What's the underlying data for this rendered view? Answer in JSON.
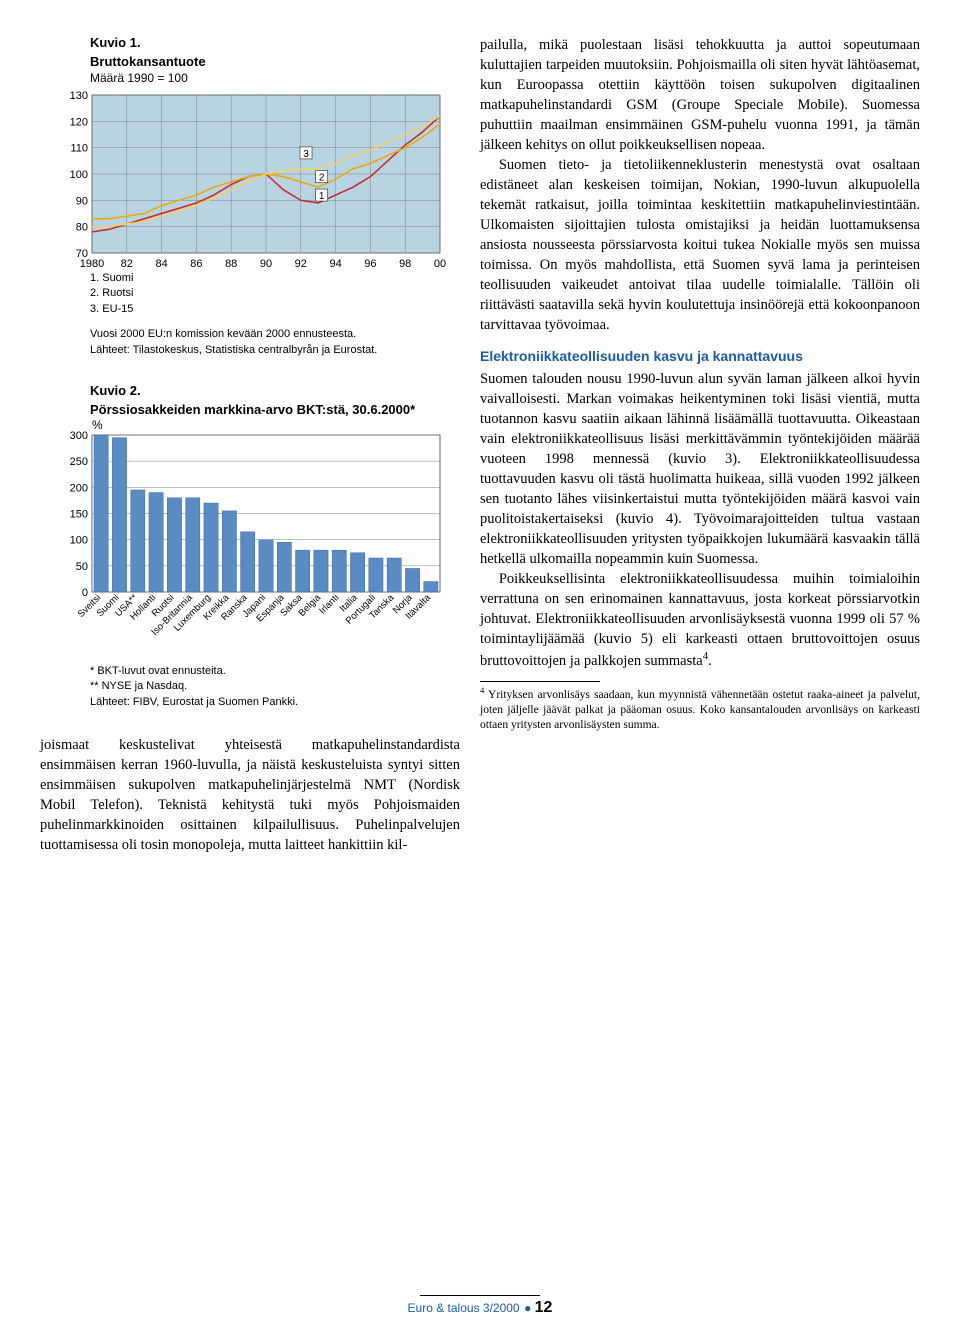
{
  "chart1": {
    "label": "Kuvio 1.",
    "title": "Bruttokansantuote",
    "subtitle": "Määrä 1990 = 100",
    "type": "line",
    "plot_bg": "#b8d4e3",
    "grid_color": "#808080",
    "ylim": [
      70,
      130
    ],
    "ytick_step": 10,
    "yticks": [
      "70",
      "80",
      "90",
      "100",
      "110",
      "120",
      "130"
    ],
    "xlim": [
      1980,
      2000
    ],
    "xtick_step": 2,
    "xticks": [
      "1980",
      "82",
      "84",
      "86",
      "88",
      "90",
      "92",
      "94",
      "96",
      "98",
      "00"
    ],
    "series": [
      {
        "name": "Suomi",
        "color": "#c9252b",
        "marker_label": "1",
        "width": 1.5,
        "points": [
          [
            1980,
            78
          ],
          [
            1981,
            79
          ],
          [
            1982,
            81
          ],
          [
            1983,
            83
          ],
          [
            1984,
            85
          ],
          [
            1985,
            87
          ],
          [
            1986,
            89
          ],
          [
            1987,
            92
          ],
          [
            1988,
            96
          ],
          [
            1989,
            99
          ],
          [
            1990,
            100
          ],
          [
            1991,
            94
          ],
          [
            1992,
            90
          ],
          [
            1993,
            89
          ],
          [
            1994,
            92
          ],
          [
            1995,
            95
          ],
          [
            1996,
            99
          ],
          [
            1997,
            105
          ],
          [
            1998,
            111
          ],
          [
            1999,
            116
          ],
          [
            2000,
            122
          ]
        ]
      },
      {
        "name": "Ruotsi",
        "color": "#f0a800",
        "marker_label": "2",
        "width": 1.5,
        "points": [
          [
            1980,
            83
          ],
          [
            1981,
            83
          ],
          [
            1982,
            84
          ],
          [
            1983,
            85
          ],
          [
            1984,
            88
          ],
          [
            1985,
            90
          ],
          [
            1986,
            92
          ],
          [
            1987,
            95
          ],
          [
            1988,
            97
          ],
          [
            1989,
            99
          ],
          [
            1990,
            100
          ],
          [
            1991,
            99
          ],
          [
            1992,
            97
          ],
          [
            1993,
            95
          ],
          [
            1994,
            98
          ],
          [
            1995,
            102
          ],
          [
            1996,
            104
          ],
          [
            1997,
            107
          ],
          [
            1998,
            110
          ],
          [
            1999,
            114
          ],
          [
            2000,
            119
          ]
        ]
      },
      {
        "name": "EU-15",
        "color": "#f5d060",
        "marker_label": "3",
        "width": 1.5,
        "points": [
          [
            1980,
            80
          ],
          [
            1981,
            80
          ],
          [
            1982,
            81
          ],
          [
            1983,
            82
          ],
          [
            1984,
            84
          ],
          [
            1985,
            86
          ],
          [
            1986,
            88
          ],
          [
            1987,
            91
          ],
          [
            1988,
            94
          ],
          [
            1989,
            97
          ],
          [
            1990,
            100
          ],
          [
            1991,
            101
          ],
          [
            1992,
            102
          ],
          [
            1993,
            102
          ],
          [
            1994,
            104
          ],
          [
            1995,
            107
          ],
          [
            1996,
            109
          ],
          [
            1997,
            112
          ],
          [
            1998,
            115
          ],
          [
            1999,
            118
          ],
          [
            2000,
            122
          ]
        ]
      }
    ],
    "legend": [
      "1. Suomi",
      "2. Ruotsi",
      "3. EU-15"
    ],
    "notes": [
      "Vuosi 2000 EU:n komission kevään 2000 ennusteesta.",
      "Lähteet: Tilastokeskus, Statistiska centralbyrån ja Eurostat."
    ]
  },
  "chart2": {
    "label": "Kuvio 2.",
    "title": "Pörssiosakkeiden markkina-arvo BKT:stä, 30.6.2000*",
    "unit": "%",
    "type": "bar",
    "plot_bg": "#ffffff",
    "grid_color": "#808080",
    "bar_color": "#5a8bc4",
    "ylim": [
      0,
      300
    ],
    "ytick_step": 50,
    "yticks": [
      "0",
      "50",
      "100",
      "150",
      "200",
      "250",
      "300"
    ],
    "categories": [
      "Sveitsi",
      "Suomi",
      "USA**",
      "Hollanti",
      "Ruotsi",
      "Iso-Britannia",
      "Luxemburg",
      "Kreikka",
      "Ranska",
      "Japani",
      "Espanja",
      "Saksa",
      "Belgia",
      "Irlanti",
      "Italia",
      "Portugali",
      "Tanska",
      "Norja",
      "Itävalta"
    ],
    "values": [
      305,
      295,
      195,
      190,
      180,
      180,
      170,
      155,
      115,
      100,
      95,
      80,
      80,
      80,
      75,
      65,
      65,
      45,
      20
    ],
    "notes": [
      "*  BKT-luvut ovat ennusteita.",
      "** NYSE ja Nasdaq.",
      "Lähteet: FIBV, Eurostat ja Suomen Pankki."
    ]
  },
  "left_body": {
    "p1": "joismaat keskustelivat yhteisestä matkapuhelinstandardista ensimmäisen kerran 1960-luvulla, ja näistä keskusteluista syntyi sitten ensimmäisen sukupolven matkapuhelinjärjestelmä NMT (Nordisk Mobil Telefon). Teknistä kehitystä tuki myös Pohjoismaiden puhelinmarkkinoiden osittainen kilpailullisuus. Puhelinpalvelujen tuottamisessa oli tosin monopoleja, mutta laitteet hankittiin kil-"
  },
  "right_body": {
    "p1": "pailulla, mikä puolestaan lisäsi tehokkuutta ja auttoi sopeutumaan kuluttajien tarpeiden muutoksiin. Pohjoismailla oli siten hyvät lähtöasemat, kun Euroopassa otettiin käyttöön toisen sukupolven digitaalinen matkapuhelinstandardi GSM (Groupe Speciale Mobile). Suomessa puhuttiin maailman ensimmäinen GSM-puhelu vuonna 1991, ja tämän jälkeen kehitys on ollut poikkeuksellisen nopeaa.",
    "p2": "Suomen tieto- ja tietoliikenneklusterin menestystä ovat osaltaan edistäneet alan keskeisen toimijan, Nokian, 1990-luvun alkupuolella tekemät ratkaisut, joilla toimintaa keskitettiin matkapuhelinviestintään. Ulkomaisten sijoittajien tulosta omistajiksi ja heidän luottamuksensa ansiosta nousseesta pörssiarvosta koitui tukea Nokialle myös sen muissa toimissa. On myös mahdollista, että Suomen syvä lama ja perinteisen teollisuuden vaikeudet antoivat tilaa uudelle toimialalle. Tällöin oli riittävästi saatavilla sekä hyvin koulutettuja insinöörejä että kokoonpanoon tarvittavaa työvoimaa.",
    "heading": "Elektroniikkateollisuuden kasvu ja kannattavuus",
    "p3": "Suomen talouden nousu 1990-luvun alun syvän laman jälkeen alkoi hyvin vaivalloisesti. Markan voimakas heikentyminen toki lisäsi vientiä, mutta tuotannon kasvu saatiin aikaan lähinnä lisäämällä tuottavuutta. Oikeastaan vain elektroniikkateollisuus lisäsi merkittävämmin työntekijöiden määrää vuoteen 1998 mennessä (kuvio 3). Elektroniikkateollisuudessa tuottavuuden kasvu oli tästä huolimatta huikeaa, sillä vuoden 1992 jälkeen sen tuotanto lähes viisinkertaistui mutta työntekijöiden määrä kasvoi vain puolitoistakertaiseksi (kuvio 4). Työvoimarajoitteiden tultua vastaan elektroniikkateollisuuden yritysten työpaikkojen lukumäärä kasvaakin tällä hetkellä ulkomailla nopeammin kuin Suomessa.",
    "p4a": "Poikkeuksellisinta elektroniikkateollisuudessa muihin toimialoihin verrattuna on sen erinomainen kannattavuus, josta korkeat pörssiarvotkin johtuvat. Elektroniikkateollisuuden arvonlisäyksestä vuonna 1999 oli 57 % toimintaylijäämää (kuvio 5) eli karkeasti ottaen bruttovoittojen osuus bruttovoittojen ja palkkojen summasta",
    "p4b": "."
  },
  "footnote": {
    "num": "4",
    "text": " Yrityksen arvonlisäys saadaan, kun myynnistä vähennetään ostetut raaka-aineet ja palvelut, joten jäljelle jäävät palkat ja pääoman osuus. Koko kansantalouden arvonlisäys on karkeasti ottaen yritysten arvonlisäysten summa."
  },
  "footer": {
    "journal": "Euro & talous 3/2000",
    "page": "12"
  }
}
